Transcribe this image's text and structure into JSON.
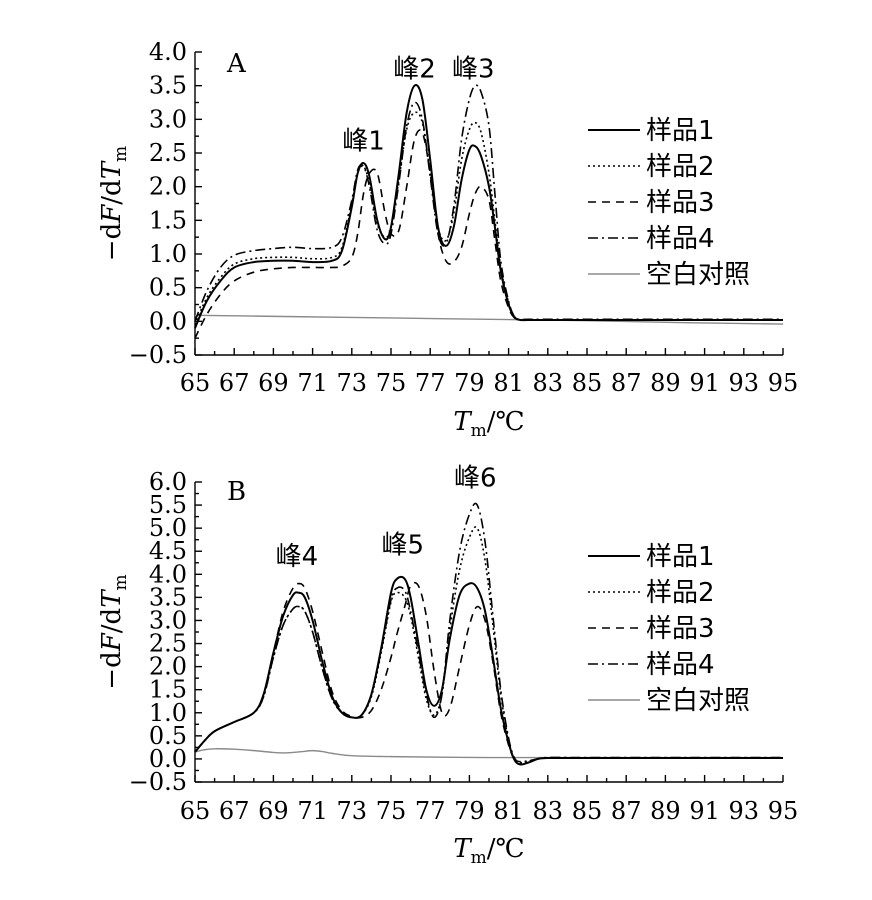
{
  "chart_data": [
    {
      "type": "line",
      "panel_label": "A",
      "ylim": [
        -0.5,
        4.0
      ],
      "yticks": [
        "−0.5",
        "0.0",
        "0.5",
        "1.0",
        "1.5",
        "2.0",
        "2.5",
        "3.0",
        "3.5",
        "4.0"
      ],
      "ytick_values": [
        -0.5,
        0.0,
        0.5,
        1.0,
        1.5,
        2.0,
        2.5,
        3.0,
        3.5,
        4.0
      ],
      "xlim": [
        65,
        95
      ],
      "xticks": [
        "65",
        "67",
        "69",
        "71",
        "73",
        "75",
        "77",
        "79",
        "81",
        "83",
        "85",
        "87",
        "89",
        "91",
        "93",
        "95"
      ],
      "ylabel": {
        "pre": "−d",
        "var": "F",
        "mid": "/d",
        "var2": "T",
        "sub": "m"
      },
      "xlabel": {
        "var": "T",
        "sub": "m",
        "unit": "/℃"
      },
      "peaks": [
        {
          "label": "峰1",
          "x": 73.6,
          "y": 2.55
        },
        {
          "label": "峰2",
          "x": 76.2,
          "y": 3.62
        },
        {
          "label": "峰3",
          "x": 79.2,
          "y": 3.62
        }
      ],
      "series": [
        {
          "name": "样品1",
          "x": [
            65,
            65.6,
            66.3,
            67,
            68,
            69,
            70,
            71,
            72,
            72.5,
            73,
            73.3,
            73.6,
            73.9,
            74.3,
            74.7,
            75,
            75.4,
            75.8,
            76.2,
            76.6,
            77,
            77.4,
            77.8,
            78.2,
            78.6,
            79,
            79.3,
            79.6,
            80,
            80.3,
            80.6,
            81,
            81.3,
            81.6,
            82,
            83,
            85,
            90,
            95
          ],
          "y": [
            -0.1,
            0.3,
            0.6,
            0.8,
            0.88,
            0.9,
            0.9,
            0.88,
            0.9,
            1.05,
            1.7,
            2.2,
            2.35,
            2.15,
            1.5,
            1.22,
            1.4,
            2.2,
            3.1,
            3.5,
            3.3,
            2.4,
            1.4,
            1.12,
            1.4,
            2.1,
            2.55,
            2.6,
            2.45,
            2.0,
            1.4,
            0.75,
            0.25,
            0.06,
            0.02,
            0.02,
            0.02,
            0.02,
            0.02,
            0.02
          ]
        },
        {
          "name": "样品2",
          "x": [
            65,
            65.6,
            66.3,
            67,
            68,
            69,
            70,
            71,
            72,
            72.5,
            73,
            73.3,
            73.6,
            73.9,
            74.3,
            74.7,
            75,
            75.4,
            75.8,
            76.2,
            76.6,
            77,
            77.4,
            77.8,
            78.2,
            78.6,
            79,
            79.3,
            79.6,
            80,
            80.3,
            80.6,
            81,
            81.3,
            81.6,
            82,
            83,
            85,
            90,
            95
          ],
          "y": [
            -0.05,
            0.35,
            0.65,
            0.85,
            0.93,
            0.95,
            0.95,
            0.93,
            0.95,
            1.1,
            1.75,
            2.2,
            2.3,
            2.05,
            1.45,
            1.25,
            1.4,
            2.1,
            2.85,
            3.1,
            2.95,
            2.2,
            1.4,
            1.2,
            1.6,
            2.4,
            2.85,
            2.95,
            2.8,
            2.2,
            1.5,
            0.8,
            0.28,
            0.07,
            0.02,
            0.02,
            0.02,
            0.02,
            0.02,
            0.02
          ]
        },
        {
          "name": "样品3",
          "x": [
            65,
            65.6,
            66.3,
            67,
            68,
            69,
            70,
            71,
            72,
            72.5,
            73,
            73.3,
            73.6,
            73.9,
            74.3,
            74.7,
            75,
            75.4,
            75.8,
            76.2,
            76.6,
            77,
            77.4,
            77.8,
            78.2,
            78.6,
            79,
            79.3,
            79.6,
            80,
            80.3,
            80.6,
            81,
            81.3,
            81.6,
            82,
            83,
            85,
            90,
            95
          ],
          "y": [
            -0.25,
            0.1,
            0.4,
            0.6,
            0.73,
            0.78,
            0.8,
            0.8,
            0.8,
            0.82,
            0.95,
            1.3,
            1.9,
            2.2,
            2.2,
            1.6,
            1.3,
            1.35,
            2.0,
            2.7,
            2.8,
            2.2,
            1.3,
            0.9,
            0.88,
            1.1,
            1.6,
            1.9,
            2.0,
            1.8,
            1.2,
            0.6,
            0.2,
            0.05,
            0.02,
            0.02,
            0.02,
            0.02,
            0.02,
            0.02
          ]
        },
        {
          "name": "样品4",
          "x": [
            65,
            65.6,
            66.3,
            67,
            68,
            69,
            70,
            71,
            72,
            72.5,
            73,
            73.3,
            73.6,
            73.9,
            74.3,
            74.7,
            75,
            75.4,
            75.8,
            76.2,
            76.6,
            77,
            77.4,
            77.8,
            78.2,
            78.6,
            79,
            79.3,
            79.6,
            80,
            80.3,
            80.6,
            81,
            81.3,
            81.6,
            82,
            83,
            85,
            90,
            95
          ],
          "y": [
            0.0,
            0.45,
            0.8,
            0.98,
            1.05,
            1.08,
            1.1,
            1.08,
            1.1,
            1.25,
            1.8,
            2.25,
            2.3,
            2.0,
            1.35,
            1.15,
            1.3,
            2.05,
            2.9,
            3.25,
            3.0,
            2.15,
            1.3,
            1.15,
            1.7,
            2.7,
            3.3,
            3.5,
            3.4,
            2.9,
            1.9,
            0.9,
            0.3,
            0.07,
            0.03,
            0.03,
            0.03,
            0.03,
            0.03,
            0.03
          ]
        },
        {
          "name": "空白对照",
          "x": [
            65,
            70,
            75,
            80,
            85,
            90,
            95
          ],
          "y": [
            0.09,
            0.07,
            0.05,
            0.03,
            0.01,
            -0.02,
            -0.04
          ]
        }
      ]
    },
    {
      "type": "line",
      "panel_label": "B",
      "ylim": [
        -0.5,
        6.0
      ],
      "yticks": [
        "−0.5",
        "0.0",
        "0.5",
        "1.0",
        "1.5",
        "2.0",
        "2.5",
        "3.0",
        "3.5",
        "4.0",
        "4.5",
        "5.0",
        "5.5",
        "6.0"
      ],
      "ytick_values": [
        -0.5,
        0.0,
        0.5,
        1.0,
        1.5,
        2.0,
        2.5,
        3.0,
        3.5,
        4.0,
        4.5,
        5.0,
        5.5,
        6.0
      ],
      "xlim": [
        65,
        95
      ],
      "xticks": [
        "65",
        "67",
        "69",
        "71",
        "73",
        "75",
        "77",
        "79",
        "81",
        "83",
        "85",
        "87",
        "89",
        "91",
        "93",
        "95"
      ],
      "ylabel": {
        "pre": "−d",
        "var": "F",
        "mid": "/d",
        "var2": "T",
        "sub": "m"
      },
      "xlabel": {
        "var": "T",
        "sub": "m",
        "unit": "/℃"
      },
      "peaks": [
        {
          "label": "峰4",
          "x": 70.2,
          "y": 4.2
        },
        {
          "label": "峰5",
          "x": 75.6,
          "y": 4.45
        },
        {
          "label": "峰6",
          "x": 79.3,
          "y": 5.9
        }
      ],
      "series": [
        {
          "name": "样品1",
          "x": [
            65,
            65.5,
            66,
            67,
            68,
            68.5,
            69,
            69.5,
            70,
            70.3,
            70.6,
            71,
            71.5,
            72,
            72.5,
            73,
            73.5,
            74,
            74.5,
            75,
            75.3,
            75.7,
            76,
            76.4,
            76.8,
            77.2,
            77.6,
            78,
            78.5,
            79,
            79.4,
            79.8,
            80.2,
            80.6,
            81,
            81.3,
            81.6,
            82,
            82.5,
            83,
            85,
            90,
            95
          ],
          "y": [
            0.15,
            0.4,
            0.6,
            0.8,
            1.0,
            1.4,
            2.3,
            3.1,
            3.55,
            3.6,
            3.5,
            3.0,
            2.1,
            1.35,
            1.0,
            0.9,
            0.95,
            1.4,
            2.4,
            3.6,
            3.9,
            3.9,
            3.5,
            2.5,
            1.5,
            1.15,
            1.5,
            2.6,
            3.55,
            3.8,
            3.7,
            3.2,
            2.2,
            1.1,
            0.35,
            -0.02,
            -0.12,
            -0.08,
            0.0,
            0.02,
            0.02,
            0.02,
            0.02
          ]
        },
        {
          "name": "样品2",
          "x": [
            65,
            65.5,
            66,
            67,
            68,
            68.5,
            69,
            69.5,
            70,
            70.3,
            70.6,
            71,
            71.5,
            72,
            72.5,
            73,
            73.5,
            74,
            74.5,
            75,
            75.3,
            75.7,
            76,
            76.4,
            76.8,
            77.2,
            77.6,
            78,
            78.5,
            79,
            79.4,
            79.8,
            80.2,
            80.6,
            81,
            81.3,
            81.6,
            82,
            82.5,
            83,
            85,
            90,
            95
          ],
          "y": [
            0.15,
            0.4,
            0.6,
            0.8,
            1.0,
            1.35,
            2.2,
            2.9,
            3.25,
            3.3,
            3.2,
            2.75,
            1.95,
            1.3,
            1.0,
            0.9,
            0.95,
            1.35,
            2.3,
            3.4,
            3.6,
            3.5,
            3.1,
            2.2,
            1.3,
            0.95,
            1.4,
            2.8,
            4.1,
            4.8,
            5.0,
            4.3,
            2.9,
            1.4,
            0.4,
            0.0,
            -0.08,
            -0.05,
            0.0,
            0.02,
            0.02,
            0.02,
            0.02
          ]
        },
        {
          "name": "样品3",
          "x": [
            65,
            65.5,
            66,
            67,
            68,
            68.5,
            69,
            69.5,
            70,
            70.3,
            70.6,
            71,
            71.5,
            72,
            72.5,
            73,
            73.5,
            74,
            74.5,
            75,
            75.3,
            75.7,
            76,
            76.4,
            76.8,
            77.2,
            77.6,
            78,
            78.5,
            79,
            79.4,
            79.8,
            80.2,
            80.6,
            81,
            81.3,
            81.6,
            82,
            82.5,
            83,
            85,
            90,
            95
          ],
          "y": [
            0.15,
            0.4,
            0.6,
            0.8,
            1.0,
            1.4,
            2.3,
            3.2,
            3.7,
            3.8,
            3.7,
            3.2,
            2.3,
            1.45,
            1.05,
            0.92,
            0.9,
            1.05,
            1.5,
            2.2,
            2.7,
            3.3,
            3.75,
            3.75,
            3.1,
            1.9,
            1.0,
            1.1,
            2.0,
            2.9,
            3.3,
            3.0,
            2.1,
            1.0,
            0.3,
            -0.02,
            -0.12,
            -0.08,
            0.0,
            0.02,
            0.02,
            0.02,
            0.02
          ]
        },
        {
          "name": "样品4",
          "x": [
            65,
            65.5,
            66,
            67,
            68,
            68.5,
            69,
            69.5,
            70,
            70.3,
            70.6,
            71,
            71.5,
            72,
            72.5,
            73,
            73.5,
            74,
            74.5,
            75,
            75.3,
            75.7,
            76,
            76.4,
            76.8,
            77.2,
            77.6,
            78,
            78.5,
            79,
            79.4,
            79.8,
            80.2,
            80.6,
            81,
            81.3,
            81.6,
            82,
            82.5,
            83,
            85,
            90,
            95
          ],
          "y": [
            0.15,
            0.4,
            0.6,
            0.8,
            1.0,
            1.35,
            2.2,
            2.9,
            3.25,
            3.3,
            3.2,
            2.75,
            1.95,
            1.3,
            1.0,
            0.9,
            0.95,
            1.4,
            2.35,
            3.45,
            3.7,
            3.65,
            3.2,
            2.3,
            1.4,
            0.9,
            1.4,
            3.0,
            4.5,
            5.3,
            5.5,
            4.7,
            3.1,
            1.5,
            0.45,
            0.02,
            -0.06,
            -0.04,
            0.0,
            0.03,
            0.03,
            0.03,
            0.03
          ]
        },
        {
          "name": "空白对照",
          "x": [
            65,
            65.5,
            66,
            67,
            68,
            69,
            69.5,
            70,
            70.5,
            71,
            71.5,
            72,
            73,
            75,
            80,
            85,
            90,
            95
          ],
          "y": [
            0.15,
            0.2,
            0.22,
            0.21,
            0.18,
            0.14,
            0.13,
            0.14,
            0.16,
            0.18,
            0.16,
            0.12,
            0.07,
            0.05,
            0.03,
            0.03,
            0.03,
            0.03
          ]
        }
      ]
    }
  ]
}
